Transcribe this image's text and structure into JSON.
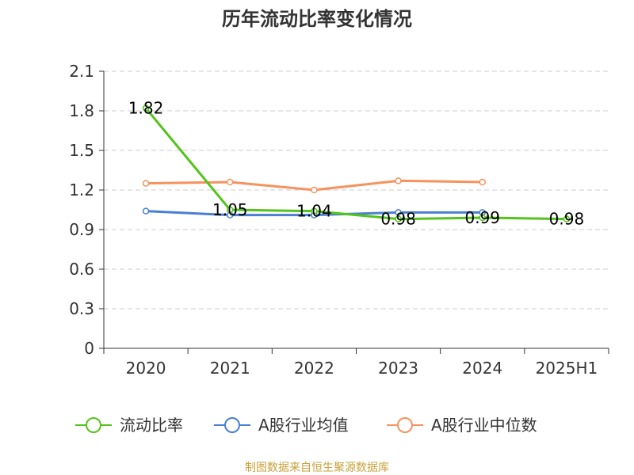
{
  "chart_data": {
    "type": "line",
    "title": "历年流动比率变化情况",
    "categories": [
      "2020",
      "2021",
      "2022",
      "2023",
      "2024",
      "2025H1"
    ],
    "ylim": [
      0,
      2.1
    ],
    "yticks": [
      "0",
      "0.3",
      "0.6",
      "0.9",
      "1.2",
      "1.5",
      "1.8",
      "2.1"
    ],
    "grid": true,
    "legend_position": "bottom",
    "series": [
      {
        "name": "流动比率",
        "color": "#52c41a",
        "values": [
          1.82,
          1.05,
          1.04,
          0.98,
          0.99,
          0.98
        ],
        "labels": [
          "1.82",
          "1.05",
          "1.04",
          "0.98",
          "0.99",
          "0.98"
        ]
      },
      {
        "name": "A股行业均值",
        "color": "#4a7fd4",
        "values": [
          1.04,
          1.01,
          1.01,
          1.03,
          1.03,
          null
        ],
        "labels": []
      },
      {
        "name": "A股行业中位数",
        "color": "#f5925e",
        "values": [
          1.25,
          1.26,
          1.2,
          1.27,
          1.26,
          null
        ],
        "labels": []
      }
    ],
    "source": "制图数据来自恒生聚源数据库"
  }
}
